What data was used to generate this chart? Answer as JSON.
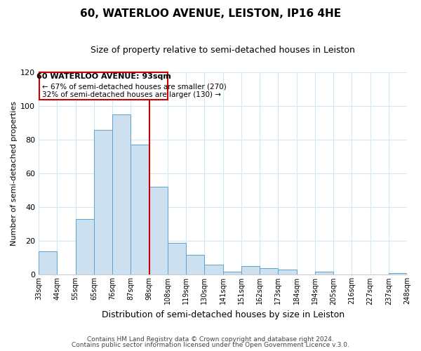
{
  "title": "60, WATERLOO AVENUE, LEISTON, IP16 4HE",
  "subtitle": "Size of property relative to semi-detached houses in Leiston",
  "xlabel": "Distribution of semi-detached houses by size in Leiston",
  "ylabel": "Number of semi-detached properties",
  "bins": [
    "33sqm",
    "44sqm",
    "55sqm",
    "65sqm",
    "76sqm",
    "87sqm",
    "98sqm",
    "108sqm",
    "119sqm",
    "130sqm",
    "141sqm",
    "151sqm",
    "162sqm",
    "173sqm",
    "184sqm",
    "194sqm",
    "205sqm",
    "216sqm",
    "227sqm",
    "237sqm",
    "248sqm"
  ],
  "values": [
    14,
    0,
    33,
    86,
    95,
    77,
    52,
    19,
    12,
    6,
    2,
    5,
    4,
    3,
    0,
    2,
    0,
    0,
    0,
    1
  ],
  "bar_color": "#cce0f0",
  "bar_edge_color": "#5ba3d0",
  "highlight_line_color": "#cc0000",
  "annotation_title": "60 WATERLOO AVENUE: 93sqm",
  "annotation_line1": "← 67% of semi-detached houses are smaller (270)",
  "annotation_line2": "32% of semi-detached houses are larger (130) →",
  "annotation_box_edge_color": "#cc0000",
  "ylim": [
    0,
    120
  ],
  "yticks": [
    0,
    20,
    40,
    60,
    80,
    100,
    120
  ],
  "footer1": "Contains HM Land Registry data © Crown copyright and database right 2024.",
  "footer2": "Contains public sector information licensed under the Open Government Licence v.3.0.",
  "background_color": "#ffffff",
  "grid_color": "#d0e8f5"
}
